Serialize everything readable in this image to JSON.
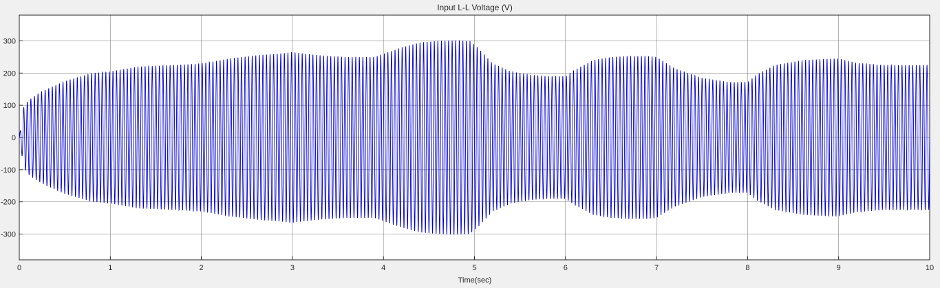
{
  "chart_data": {
    "type": "line",
    "title": "Input L-L Voltage (V)",
    "xlabel": "Time(sec)",
    "ylabel": "",
    "xlim": [
      0,
      10
    ],
    "ylim": [
      -380,
      380
    ],
    "xticks": [
      0,
      1,
      2,
      3,
      4,
      5,
      6,
      7,
      8,
      9,
      10
    ],
    "yticks": [
      -300,
      -200,
      -100,
      0,
      100,
      200,
      300
    ],
    "grid": true,
    "line_color": "#0000cc",
    "series": [
      {
        "waveform": "sinusoid",
        "cycles": 255,
        "envelope": {
          "t": [
            0,
            0.05,
            0.1,
            0.2,
            0.3,
            0.5,
            0.8,
            1.0,
            1.3,
            1.7,
            2.0,
            2.3,
            2.6,
            2.9,
            3.0,
            3.3,
            3.6,
            3.9,
            4.0,
            4.2,
            4.4,
            4.6,
            4.8,
            4.95,
            5.05,
            5.2,
            5.4,
            5.6,
            5.8,
            6.0,
            6.1,
            6.3,
            6.5,
            6.7,
            6.9,
            7.0,
            7.2,
            7.5,
            7.8,
            8.0,
            8.1,
            8.3,
            8.6,
            8.9,
            9.0,
            9.2,
            9.5,
            9.8,
            10.0
          ],
          "amplitude": [
            0,
            95,
            115,
            135,
            150,
            175,
            200,
            205,
            220,
            225,
            230,
            245,
            255,
            262,
            265,
            255,
            250,
            250,
            260,
            280,
            295,
            300,
            302,
            300,
            275,
            230,
            205,
            195,
            190,
            190,
            210,
            240,
            250,
            253,
            253,
            250,
            215,
            185,
            172,
            172,
            195,
            225,
            240,
            245,
            245,
            232,
            225,
            225,
            225
          ]
        }
      }
    ]
  }
}
